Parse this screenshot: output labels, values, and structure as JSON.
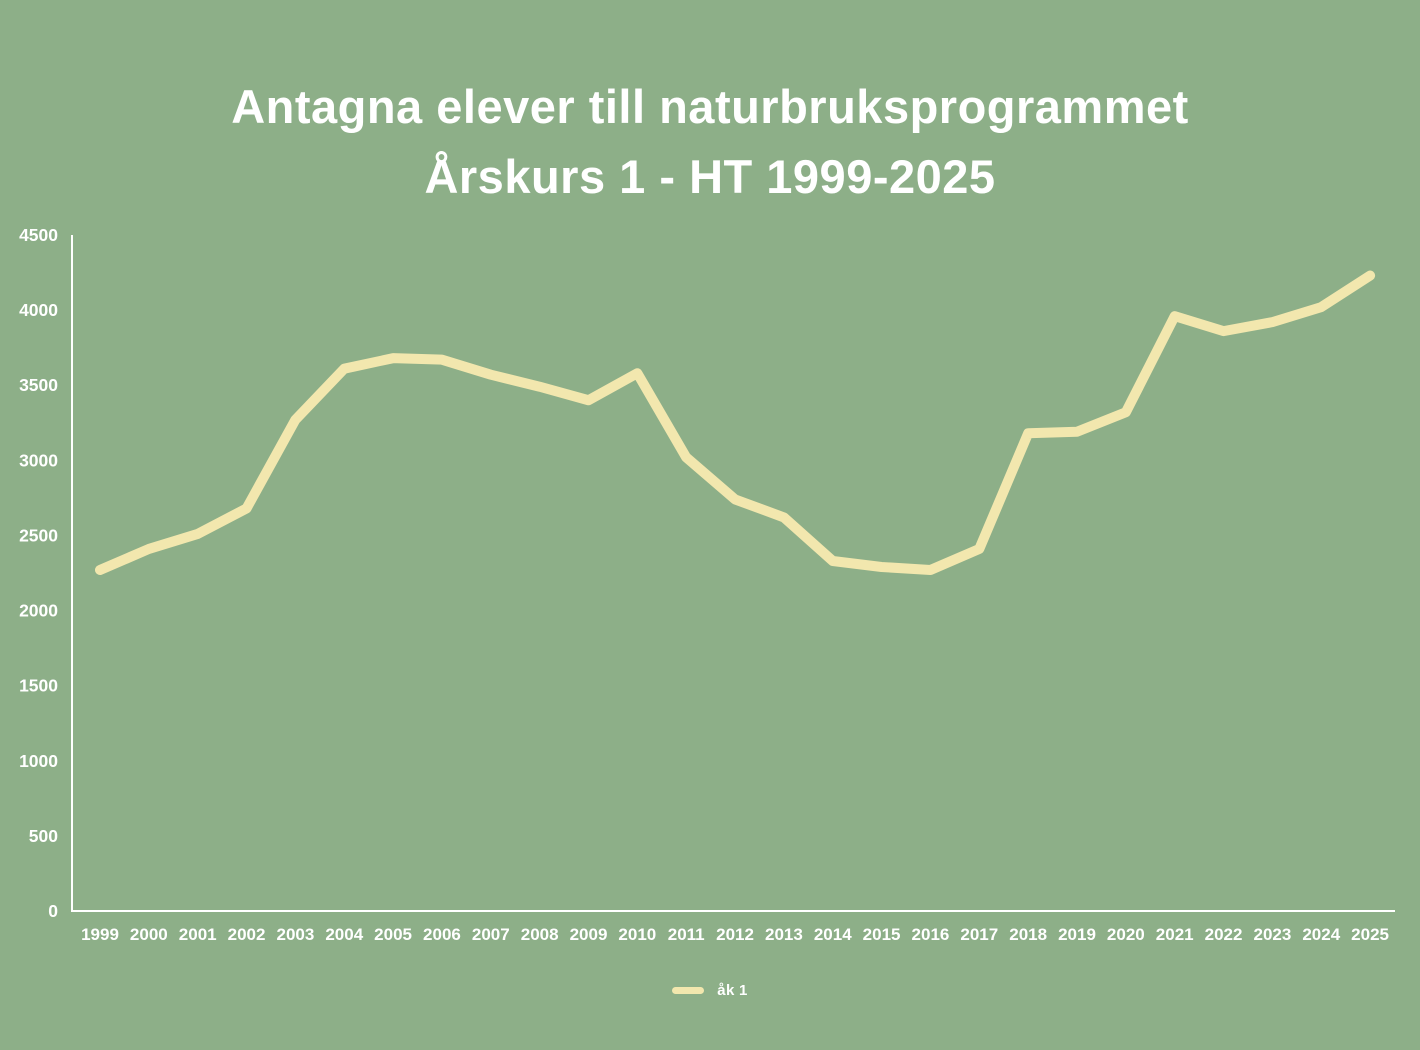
{
  "chart_data": {
    "type": "line",
    "title_line1": "Antagna elever till naturbruksprogrammet",
    "title_line2": "Årskurs 1 - HT 1999-2025",
    "categories": [
      "1999",
      "2000",
      "2001",
      "2002",
      "2003",
      "2004",
      "2005",
      "2006",
      "2007",
      "2008",
      "2009",
      "2010",
      "2011",
      "2012",
      "2013",
      "2014",
      "2015",
      "2016",
      "2017",
      "2018",
      "2019",
      "2020",
      "2021",
      "2022",
      "2023",
      "2024",
      "2025"
    ],
    "series": [
      {
        "name": "åk 1",
        "color": "#f2e7ae",
        "values": [
          2270,
          2410,
          2510,
          2680,
          3270,
          3610,
          3680,
          3670,
          3570,
          3490,
          3400,
          3580,
          3020,
          2740,
          2620,
          2330,
          2290,
          2270,
          2410,
          3180,
          3190,
          3320,
          3960,
          3860,
          3920,
          4020,
          4230
        ]
      }
    ],
    "xlabel": "",
    "ylabel": "",
    "ylim": [
      0,
      4500
    ],
    "y_ticks": [
      0,
      500,
      1000,
      1500,
      2000,
      2500,
      3000,
      3500,
      4000,
      4500
    ],
    "grid": false,
    "legend_position": "bottom"
  },
  "colors": {
    "background": "#8daf88",
    "text": "#ffffff",
    "axis": "#ffffff",
    "line": "#f2e7ae"
  }
}
